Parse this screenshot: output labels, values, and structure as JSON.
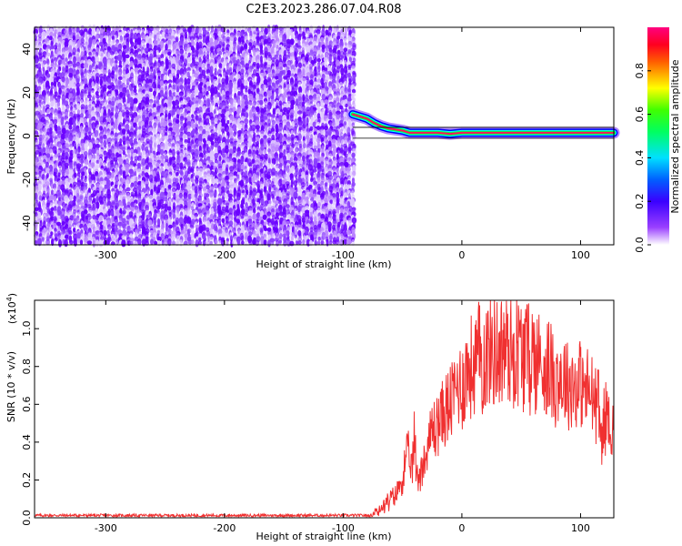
{
  "title": "C2E3.2023.286.07.04.R08",
  "chart_data": [
    {
      "type": "heatmap",
      "xlabel": "Height of straight line (km)",
      "ylabel": "Frequency (Hz)",
      "xlim": [
        -360,
        128
      ],
      "ylim": [
        -50,
        50
      ],
      "xticks": [
        -300,
        -200,
        -100,
        0,
        100
      ],
      "yticks": [
        -40,
        -20,
        0,
        20,
        40
      ],
      "grid": false,
      "noise_region_x": [
        -360,
        -92
      ],
      "fill_colorscale": [
        "#6a00ff",
        "#8a3cff",
        "#b982ff",
        "#ddc6ff"
      ],
      "signal_ridge": {
        "x": [
          -92,
          -86,
          -80,
          -74,
          -68,
          -62,
          -56,
          -50,
          -44,
          -38,
          -30,
          -20,
          -10,
          0,
          20,
          40,
          60,
          80,
          100,
          110,
          128
        ],
        "frequency_hz": [
          10,
          9,
          8,
          6,
          4.5,
          3.5,
          3,
          2.5,
          1.5,
          1.5,
          1.5,
          1.5,
          1,
          1.5,
          1.5,
          1.5,
          1.5,
          1.5,
          1.5,
          1.5,
          1.5
        ]
      },
      "colorbar": {
        "label": "Normalized spectral amplitude",
        "range": [
          0,
          1
        ],
        "ticks": [
          "0.0",
          "0.2",
          "0.4",
          "0.6",
          "0.8"
        ],
        "colors": [
          "#ffffff",
          "#7a00ff",
          "#0000ff",
          "#00ffff",
          "#00ff00",
          "#ffff00",
          "#ff0000",
          "#ff0080"
        ]
      }
    },
    {
      "type": "line",
      "xlabel": "Height of straight line (km)",
      "ylabel": "SNR (10 * v/v)",
      "y_multiplier": "(x10",
      "y_multiplier_exp": "4",
      "y_multiplier_close": ")",
      "xlim": [
        -360,
        128
      ],
      "ylim": [
        0,
        1.15
      ],
      "xticks": [
        -300,
        -200,
        -100,
        0,
        100
      ],
      "yticks": [
        "0.0",
        "0.2",
        "0.4",
        "0.6",
        "0.8",
        "1.0"
      ],
      "grid": false,
      "series_color": "#f03030",
      "series": [
        {
          "x": [
            -360,
            -300,
            -200,
            -100,
            -70,
            -62,
            -55,
            -50,
            -46,
            -42,
            -40,
            -38,
            -35,
            -30,
            -25,
            -20,
            -15,
            -10,
            -5,
            0,
            5,
            10,
            15,
            20,
            25,
            30,
            40,
            50,
            60,
            70,
            80,
            90,
            100,
            110,
            115,
            118,
            120,
            122,
            125,
            128
          ],
          "values": [
            0.01,
            0.01,
            0.01,
            0.01,
            0.05,
            0.1,
            0.15,
            0.25,
            0.4,
            0.3,
            0.5,
            0.25,
            0.3,
            0.4,
            0.55,
            0.6,
            0.65,
            0.7,
            0.8,
            0.85,
            0.9,
            0.95,
            1.0,
            1.02,
            1.03,
            1.05,
            1.05,
            1.04,
            1.0,
            0.95,
            0.88,
            0.84,
            0.82,
            0.75,
            0.7,
            0.5,
            0.6,
            0.65,
            0.58,
            0.55
          ]
        }
      ]
    }
  ]
}
